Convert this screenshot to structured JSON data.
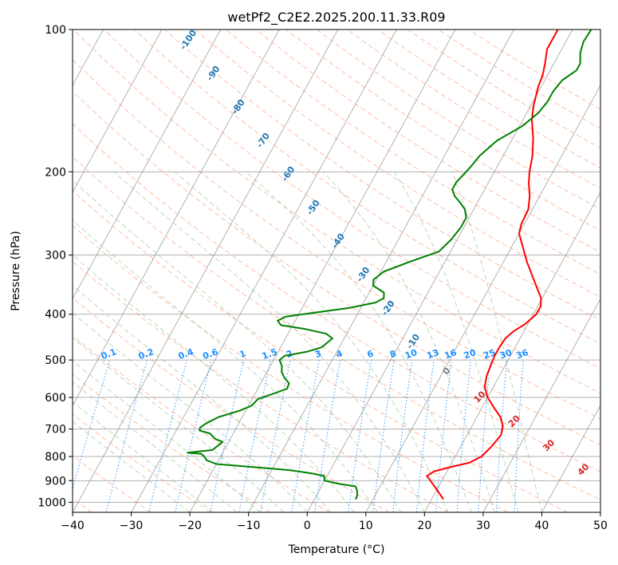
{
  "chart_data": {
    "type": "line",
    "title": "wetPf2_C2E2.2025.200.11.33.R09",
    "xlabel": "Temperature (°C)",
    "ylabel": "Pressure (hPa)",
    "xlim": [
      -40,
      50
    ],
    "ylim": [
      1050,
      100
    ],
    "y_scale": "log",
    "x_ticks": [
      -40,
      -30,
      -20,
      -10,
      0,
      10,
      20,
      30,
      40,
      50
    ],
    "y_ticks": [
      100,
      200,
      300,
      400,
      500,
      600,
      700,
      800,
      900,
      1000
    ],
    "grid": true,
    "series": [
      {
        "color": "#ff0000",
        "points": [
          [
            22.0,
            985
          ],
          [
            19.5,
            930
          ],
          [
            17.8,
            895
          ],
          [
            17.0,
            880
          ],
          [
            17.8,
            860
          ],
          [
            20.5,
            840
          ],
          [
            23.0,
            825
          ],
          [
            24.5,
            800
          ],
          [
            25.3,
            760
          ],
          [
            25.8,
            720
          ],
          [
            25.3,
            690
          ],
          [
            24.0,
            660
          ],
          [
            22.0,
            630
          ],
          [
            20.0,
            600
          ],
          [
            18.5,
            570
          ],
          [
            17.8,
            540
          ],
          [
            17.5,
            510
          ],
          [
            17.3,
            490
          ],
          [
            17.3,
            470
          ],
          [
            17.5,
            450
          ],
          [
            18.2,
            435
          ],
          [
            19.5,
            420
          ],
          [
            20.5,
            400
          ],
          [
            20.5,
            385
          ],
          [
            19.8,
            370
          ],
          [
            17.5,
            345
          ],
          [
            14.0,
            310
          ],
          [
            10.0,
            270
          ],
          [
            9.5,
            258
          ],
          [
            9.3,
            240
          ],
          [
            8.3,
            225
          ],
          [
            7.0,
            212
          ],
          [
            6.0,
            200
          ],
          [
            5.0,
            185
          ],
          [
            3.5,
            170
          ],
          [
            1.5,
            155
          ],
          [
            0.5,
            145
          ],
          [
            -0.5,
            132
          ],
          [
            -0.8,
            125
          ],
          [
            -1.5,
            118
          ],
          [
            -2.5,
            110
          ],
          [
            -2.5,
            100
          ]
        ]
      },
      {
        "color": "#008000",
        "points": [
          [
            7.0,
            985
          ],
          [
            7.0,
            970
          ],
          [
            6.5,
            945
          ],
          [
            5.8,
            925
          ],
          [
            3.0,
            915
          ],
          [
            0.0,
            900
          ],
          [
            -0.5,
            880
          ],
          [
            -2.5,
            870
          ],
          [
            -7.0,
            855
          ],
          [
            -12.0,
            845
          ],
          [
            -20.0,
            830
          ],
          [
            -22.0,
            815
          ],
          [
            -22.8,
            800
          ],
          [
            -23.5,
            790
          ],
          [
            -26.0,
            785
          ],
          [
            -22.0,
            775
          ],
          [
            -21.5,
            760
          ],
          [
            -21.0,
            745
          ],
          [
            -22.5,
            735
          ],
          [
            -24.0,
            715
          ],
          [
            -26.0,
            705
          ],
          [
            -26.2,
            695
          ],
          [
            -25.5,
            680
          ],
          [
            -24.0,
            660
          ],
          [
            -21.0,
            640
          ],
          [
            -19.5,
            625
          ],
          [
            -19.0,
            605
          ],
          [
            -17.0,
            590
          ],
          [
            -15.0,
            575
          ],
          [
            -15.2,
            560
          ],
          [
            -16.5,
            545
          ],
          [
            -17.5,
            530
          ],
          [
            -18.0,
            515
          ],
          [
            -19.0,
            500
          ],
          [
            -18.5,
            490
          ],
          [
            -15.0,
            480
          ],
          [
            -13.0,
            470
          ],
          [
            -12.5,
            460
          ],
          [
            -12.0,
            450
          ],
          [
            -13.5,
            440
          ],
          [
            -17.5,
            430
          ],
          [
            -22.0,
            422
          ],
          [
            -23.0,
            413
          ],
          [
            -22.0,
            405
          ],
          [
            -18.0,
            398
          ],
          [
            -12.0,
            388
          ],
          [
            -8.0,
            378
          ],
          [
            -7.0,
            370
          ],
          [
            -7.5,
            360
          ],
          [
            -10.0,
            348
          ],
          [
            -10.5,
            338
          ],
          [
            -9.5,
            325
          ],
          [
            -6.0,
            310
          ],
          [
            -2.0,
            295
          ],
          [
            -1.0,
            278
          ],
          [
            -0.5,
            262
          ],
          [
            -0.5,
            250
          ],
          [
            -1.5,
            240
          ],
          [
            -3.0,
            232
          ],
          [
            -4.5,
            225
          ],
          [
            -5.5,
            218
          ],
          [
            -5.5,
            210
          ],
          [
            -5.0,
            203
          ],
          [
            -4.5,
            195
          ],
          [
            -4.0,
            185
          ],
          [
            -2.5,
            172
          ],
          [
            0.5,
            160
          ],
          [
            2.0,
            150
          ],
          [
            2.5,
            142
          ],
          [
            2.5,
            135
          ],
          [
            3.0,
            128
          ],
          [
            4.5,
            122
          ],
          [
            4.5,
            118
          ],
          [
            3.5,
            112
          ],
          [
            3.0,
            106
          ],
          [
            3.2,
            100
          ]
        ]
      }
    ],
    "background_lines": {
      "isotherms": {
        "color": "#7f7f7f"
      },
      "dry_adiabats": {
        "color": "#ffa07a"
      },
      "moist_adiabats": {
        "color": "#8fbc8f"
      },
      "mixing_ratio": {
        "color": "#1e90ff",
        "values": [
          0.1,
          0.2,
          0.4,
          0.6,
          1,
          1.5,
          2,
          3,
          4,
          6,
          8,
          10,
          13,
          16,
          20,
          25,
          30,
          36
        ]
      },
      "dry_adiabat_labels": {
        "color": "#1f77b4",
        "values": [
          -100,
          -90,
          -80,
          -70,
          -60,
          -50,
          -40,
          -30,
          -20,
          -10
        ]
      },
      "theta_e_labels": {
        "color": "#d62728",
        "values": [
          10,
          20,
          30,
          40
        ]
      },
      "zero_label": {
        "color": "#7f7f7f",
        "value": 0
      }
    }
  }
}
